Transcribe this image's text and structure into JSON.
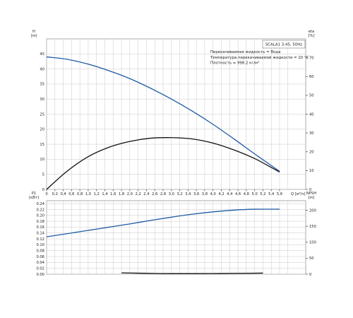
{
  "chart_data": [
    {
      "type": "line",
      "panel": "upper",
      "model_label": "SCALA1 3-45, 50Hz",
      "annotations": [
        "Перекачиваемая жидкость = Вода",
        "Температура перекачиваемой жидкости = 20 °C",
        "Плотность = 998.2 кг/м³"
      ],
      "xlabel": "Q [м³/ч]",
      "ylabel_left": "H",
      "ylabel_left_unit": "[м]",
      "ylabel_right": "eta",
      "ylabel_right_unit": "[%]",
      "x_ticks": [
        "0",
        "0,2",
        "0,4",
        "0,6",
        "0,8",
        "1,0",
        "1,2",
        "1,4",
        "1,6",
        "1,8",
        "2,0",
        "2,2",
        "2,4",
        "2,6",
        "2,8",
        "3,0",
        "3,2",
        "3,4",
        "3,6",
        "3,8",
        "4,0",
        "4,2",
        "4,4",
        "4,6",
        "4,8",
        "5,0",
        "5,2",
        "5,4",
        "5,6"
      ],
      "y_left_ticks": [
        "0",
        "5",
        "10",
        "15",
        "20",
        "25",
        "30",
        "35",
        "40",
        "45"
      ],
      "y_right_ticks": [
        "0",
        "10",
        "20",
        "30",
        "40",
        "50",
        "60",
        "70"
      ],
      "xlim": [
        0,
        5.8
      ],
      "ylim_left": [
        0,
        50
      ],
      "ylim_right": [
        0,
        80
      ],
      "grid": true,
      "series": [
        {
          "axis": "left",
          "color": "#1f5aa6",
          "x": [
            0,
            0.5,
            1.0,
            1.5,
            2.0,
            2.5,
            3.0,
            3.5,
            4.0,
            4.5,
            5.0,
            5.6
          ],
          "y": [
            44.0,
            43.2,
            41.6,
            39.4,
            36.8,
            33.6,
            30.0,
            26.0,
            21.6,
            16.8,
            11.8,
            6.0
          ]
        },
        {
          "axis": "right",
          "color": "#111111",
          "x": [
            0,
            0.5,
            1.0,
            1.5,
            2.0,
            2.5,
            3.0,
            3.5,
            4.0,
            4.5,
            5.0,
            5.6
          ],
          "y": [
            0,
            9.8,
            17.4,
            22.4,
            25.5,
            27.2,
            27.5,
            26.8,
            24.6,
            21.0,
            16.4,
            9.2
          ]
        }
      ]
    },
    {
      "type": "line",
      "panel": "lower",
      "ylabel_left": "P1",
      "ylabel_left_unit": "[кВт]",
      "ylabel_right": "NPSH",
      "ylabel_right_unit": "[м]",
      "y_left_ticks": [
        "0.00",
        "0.02",
        "0.04",
        "0.06",
        "0.08",
        "0.10",
        "0.12",
        "0.14",
        "0.16",
        "0.18",
        "0.20",
        "0.22",
        "0.24"
      ],
      "y_right_ticks": [
        "0",
        "50",
        "100",
        "150",
        "200"
      ],
      "xlim": [
        0,
        5.8
      ],
      "ylim_left": [
        0,
        0.25
      ],
      "ylim_right": [
        0,
        230
      ],
      "grid": true,
      "series": [
        {
          "axis": "left",
          "color": "#1f5aa6",
          "x": [
            0,
            0.5,
            1.0,
            1.5,
            2.0,
            2.5,
            3.0,
            3.5,
            4.0,
            4.5,
            5.0,
            5.6
          ],
          "y": [
            0.127,
            0.138,
            0.149,
            0.16,
            0.171,
            0.183,
            0.194,
            0.204,
            0.212,
            0.218,
            0.221,
            0.221
          ]
        },
        {
          "axis": "right",
          "color": "#111111",
          "x": [
            1.8,
            2.2,
            2.6,
            3.0,
            3.5,
            4.0,
            4.5,
            5.2
          ],
          "y": [
            4.2,
            3.2,
            2.2,
            1.8,
            1.8,
            2.0,
            2.4,
            3.4
          ]
        }
      ]
    }
  ]
}
